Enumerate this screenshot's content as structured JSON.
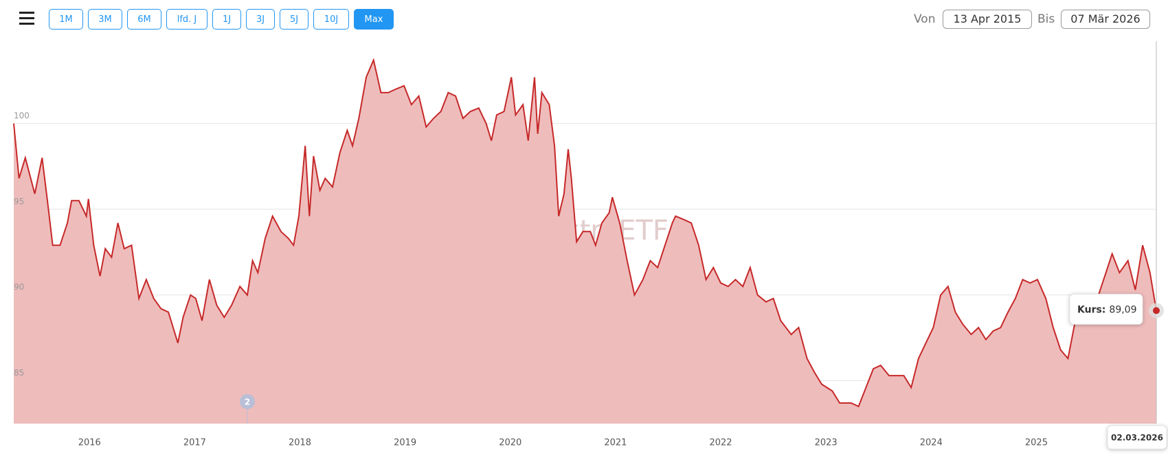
{
  "controls": {
    "ranges": [
      "1M",
      "3M",
      "6M",
      "lfd. J",
      "1J",
      "3J",
      "5J",
      "10J",
      "Max"
    ],
    "active": "Max",
    "from_label": "Von",
    "from": "13 Apr 2015",
    "to_label": "Bis",
    "to": "07 Mär 2026"
  },
  "chart_data": {
    "type": "area",
    "watermark": "extraETF",
    "x": [
      2015.28,
      2015.33,
      2015.39,
      2015.48,
      2015.55,
      2015.6,
      2015.65,
      2015.72,
      2015.79,
      2015.83,
      2015.9,
      2015.97,
      2015.99,
      2016.04,
      2016.1,
      2016.15,
      2016.21,
      2016.27,
      2016.33,
      2016.4,
      2016.47,
      2016.54,
      2016.61,
      2016.68,
      2016.75,
      2016.84,
      2016.89,
      2016.96,
      2017.01,
      2017.07,
      2017.14,
      2017.21,
      2017.28,
      2017.35,
      2017.43,
      2017.5,
      2017.55,
      2017.6,
      2017.67,
      2017.74,
      2017.82,
      2017.89,
      2017.94,
      2017.99,
      2018.05,
      2018.09,
      2018.13,
      2018.19,
      2018.24,
      2018.31,
      2018.38,
      2018.45,
      2018.5,
      2018.56,
      2018.63,
      2018.7,
      2018.77,
      2018.84,
      2018.91,
      2018.99,
      2019.06,
      2019.13,
      2019.2,
      2019.27,
      2019.34,
      2019.41,
      2019.48,
      2019.55,
      2019.62,
      2019.7,
      2019.77,
      2019.82,
      2019.87,
      2019.94,
      2020.01,
      2020.05,
      2020.12,
      2020.17,
      2020.23,
      2020.26,
      2020.3,
      2020.37,
      2020.42,
      2020.46,
      2020.51,
      2020.55,
      2020.58,
      2020.63,
      2020.69,
      2020.76,
      2020.81,
      2020.87,
      2020.94,
      2020.97,
      2021.04,
      2021.11,
      2021.18,
      2021.26,
      2021.33,
      2021.4,
      2021.47,
      2021.54,
      2021.57,
      2021.65,
      2021.72,
      2021.79,
      2021.86,
      2021.93,
      2022.0,
      2022.07,
      2022.14,
      2022.21,
      2022.28,
      2022.35,
      2022.43,
      2022.5,
      2022.57,
      2022.67,
      2022.74,
      2022.82,
      2022.89,
      2022.96,
      2023.06,
      2023.13,
      2023.24,
      2023.31,
      2023.38,
      2023.45,
      2023.52,
      2023.6,
      2023.67,
      2023.74,
      2023.81,
      2023.88,
      2023.95,
      2024.02,
      2024.09,
      2024.16,
      2024.23,
      2024.3,
      2024.38,
      2024.45,
      2024.52,
      2024.59,
      2024.66,
      2024.73,
      2024.8,
      2024.87,
      2024.94,
      2025.01,
      2025.09,
      2025.16,
      2025.23,
      2025.3,
      2025.37,
      2025.44,
      2025.51,
      2025.58,
      2025.65,
      2025.72,
      2025.79,
      2025.87,
      2025.94,
      2026.01,
      2026.08,
      2026.14
    ],
    "series": [
      {
        "name": "Kurs",
        "color": "#c62828",
        "fill": "#efbcbc",
        "values": [
          100.0,
          96.8,
          98.0,
          95.9,
          98.0,
          95.5,
          92.9,
          92.9,
          94.2,
          95.5,
          95.5,
          94.6,
          95.6,
          92.9,
          91.1,
          92.7,
          92.2,
          94.2,
          92.7,
          92.9,
          89.8,
          90.9,
          89.8,
          89.2,
          89.0,
          87.2,
          88.7,
          90.0,
          89.8,
          88.5,
          90.9,
          89.4,
          88.7,
          89.4,
          90.5,
          90.0,
          92.0,
          91.3,
          93.3,
          94.6,
          93.7,
          93.3,
          92.9,
          94.6,
          98.7,
          94.6,
          98.1,
          96.1,
          96.8,
          96.3,
          98.3,
          99.6,
          98.7,
          100.3,
          102.7,
          103.7,
          101.8,
          101.8,
          102.0,
          102.2,
          101.1,
          101.6,
          99.8,
          100.3,
          100.7,
          101.8,
          101.6,
          100.3,
          100.7,
          100.9,
          100.0,
          99.0,
          100.5,
          100.7,
          102.7,
          100.5,
          101.1,
          99.0,
          102.7,
          99.4,
          101.8,
          101.1,
          98.7,
          94.6,
          95.9,
          98.5,
          96.8,
          93.1,
          93.7,
          93.7,
          92.9,
          94.2,
          94.8,
          95.7,
          94.2,
          92.0,
          90.0,
          90.9,
          92.0,
          91.6,
          92.9,
          94.2,
          94.6,
          94.4,
          94.2,
          92.9,
          90.9,
          91.6,
          90.7,
          90.5,
          90.9,
          90.5,
          91.6,
          90.0,
          89.6,
          89.8,
          88.5,
          87.7,
          88.1,
          86.3,
          85.5,
          84.8,
          84.4,
          83.7,
          83.7,
          83.5,
          84.6,
          85.7,
          85.9,
          85.3,
          85.3,
          85.3,
          84.6,
          86.3,
          87.2,
          88.1,
          90.0,
          90.5,
          89.0,
          88.3,
          87.7,
          88.1,
          87.4,
          87.9,
          88.1,
          89.0,
          89.8,
          90.9,
          90.7,
          90.9,
          89.8,
          88.1,
          86.8,
          86.3,
          88.5,
          89.0,
          90.0,
          89.8,
          91.1,
          92.4,
          91.3,
          92.0,
          90.3,
          92.9,
          91.3,
          89.09
        ]
      }
    ],
    "xlim": [
      2015.28,
      2026.14
    ],
    "xticks": [
      2016,
      2017,
      2018,
      2019,
      2020,
      2021,
      2022,
      2023,
      2024,
      2025
    ],
    "ylim": [
      82.5,
      104.8
    ],
    "yticks": [
      85,
      90,
      95,
      100
    ],
    "grid": true,
    "tooltip": {
      "label": "Kurs:",
      "value_label": "89,09",
      "date": "02.03.2026"
    },
    "annotations": [
      {
        "x": 2017.5,
        "label": "2"
      }
    ]
  }
}
